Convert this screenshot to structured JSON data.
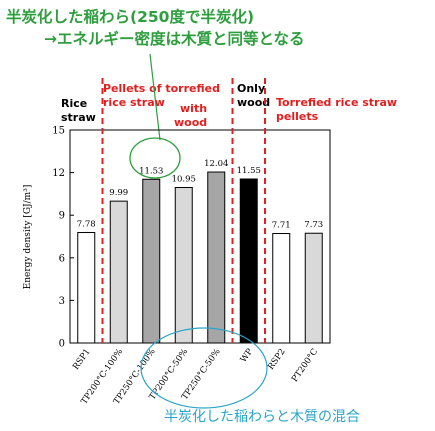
{
  "annotations": {
    "top_line1": "半炭化した稲わら(250度で半炭化)",
    "top_line2": "→エネルギー密度は木質と同等となる",
    "bottom": "半炭化した稲わらと木質の混合"
  },
  "group_labels": {
    "rice_straw": [
      "Rice",
      "straw"
    ],
    "pellets_torrefied": [
      "Pellets of torrefied",
      "rice straw"
    ],
    "with_wood": [
      "with",
      "wood"
    ],
    "only_wood": [
      "Only",
      "wood"
    ],
    "torrefied_pellets": [
      "Torrefied rice straw",
      "pellets"
    ]
  },
  "colors": {
    "annotation_green": "#2e9e3e",
    "group_red": "#e02020",
    "annotation_cyan": "#2aa5c8",
    "bar_white": "#ffffff",
    "bar_light": "#d9d9d9",
    "bar_gray": "#a6a6a6",
    "bar_black": "#000000"
  },
  "chart_data": {
    "type": "bar",
    "categories": [
      "RSP1",
      "TP200°C-100%",
      "TP250°C-100%",
      "TP200°C-50%",
      "TP250°C-50%",
      "WP",
      "RSP2",
      "PT200°C"
    ],
    "values": [
      7.78,
      9.99,
      11.53,
      10.95,
      12.04,
      11.55,
      7.71,
      7.73
    ],
    "value_labels": [
      "7.78",
      "9.99",
      "11.53",
      "10.95",
      "12.04",
      "11.55",
      "7.71",
      "7.73"
    ],
    "bar_colors": [
      "#ffffff",
      "#d9d9d9",
      "#a6a6a6",
      "#d9d9d9",
      "#a6a6a6",
      "#000000",
      "#ffffff",
      "#d9d9d9"
    ],
    "ylabel": "Energy density [GJ/m³]",
    "ylim": [
      0,
      15
    ],
    "yticks": [
      "0",
      "3",
      "6",
      "9",
      "12",
      "15"
    ],
    "ytick_values": [
      0,
      3,
      6,
      9,
      12,
      15
    ]
  }
}
